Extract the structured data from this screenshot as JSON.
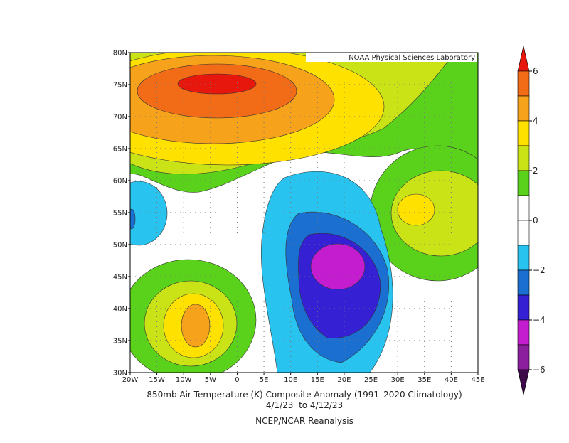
{
  "map": {
    "credit": "NOAA Physical Sciences Laboratory",
    "lat_labels": [
      "80N",
      "75N",
      "70N",
      "65N",
      "60N",
      "55N",
      "50N",
      "45N",
      "40N",
      "35N",
      "30N"
    ],
    "lon_labels": [
      "20W",
      "15W",
      "10W",
      "5W",
      "0",
      "5E",
      "10E",
      "15E",
      "20E",
      "25E",
      "30E",
      "35E",
      "40E",
      "45E"
    ],
    "title": "850mb Air Temperature (K) Composite Anomaly (1991–2020 Climatology)",
    "dates": "4/1/23  to 4/12/23",
    "source": "NCEP/NCAR Reanalysis"
  },
  "colorbar": {
    "labels": [
      "6",
      "4",
      "2",
      "0",
      "−2",
      "−4",
      "−6"
    ],
    "colors": [
      "#e8170d",
      "#f26b17",
      "#f7a21b",
      "#ffe100",
      "#c9e316",
      "#5ad11b",
      "#ffffff",
      "#ffffff",
      "#29c3f0",
      "#1a6fd1",
      "#3520d4",
      "#c41dd0",
      "#8b1f9e",
      "#3d0a4a"
    ]
  }
}
